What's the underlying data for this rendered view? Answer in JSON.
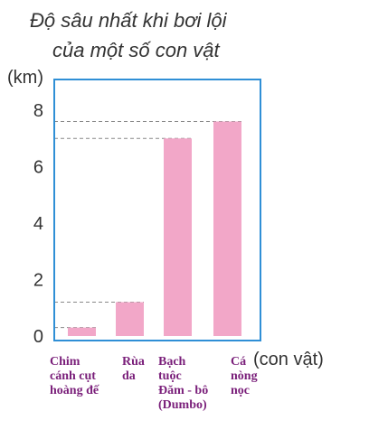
{
  "chart_data": {
    "type": "bar",
    "title": [
      "Độ sâu nhất khi bơi lội",
      "của một số con vật"
    ],
    "ylabel": "(km)",
    "xlabel": "(con vật)",
    "ylim": [
      0,
      9
    ],
    "yticks": [
      0,
      2,
      4,
      6,
      8
    ],
    "grid": false,
    "categories": [
      [
        "Chim",
        "cánh cụt",
        "hoàng đế"
      ],
      [
        "Rùa",
        "da"
      ],
      [
        "Bạch",
        "tuộc",
        "Đăm - bô",
        "(Dumbo)"
      ],
      [
        "Cá",
        "nòng",
        "nọc"
      ]
    ],
    "values": [
      0.3,
      1.2,
      7,
      7.6
    ],
    "colors": {
      "bar": "#f2a7c8",
      "frame": "#2f8fd6",
      "label": "#7a1f7a",
      "guide": "#888888"
    }
  }
}
